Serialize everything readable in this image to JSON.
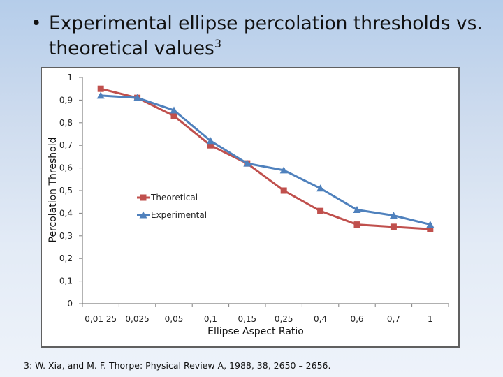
{
  "slide": {
    "bullet": "•",
    "title_text": "Experimental ellipse percolation thresholds vs. theoretical values",
    "title_superscript": "3",
    "reference": "3: W. Xia, and M. F. Thorpe: Physical Review A, 1988, 38, 2650 – 2656."
  },
  "chart_data": {
    "type": "line",
    "title": "",
    "xlabel": "Ellipse Aspect Ratio",
    "ylabel": "Percolation Threshold",
    "categories": [
      "0,0125",
      "0,025",
      "0,05",
      "0,1",
      "0,15",
      "0,25",
      "0,4",
      "0,6",
      "0,7",
      "1"
    ],
    "category_labels_shown": [
      "0,01 25",
      "0,025",
      "0,05",
      "0,1",
      "0,15",
      "0,25",
      "0,4",
      "0,6",
      "0,7",
      "1"
    ],
    "ylim": [
      0,
      1
    ],
    "ytick_values": [
      0,
      0.1,
      0.2,
      0.3,
      0.4,
      0.5,
      0.6,
      0.7,
      0.8,
      0.9,
      1
    ],
    "ytick_labels": [
      "0",
      "0,1",
      "0,2",
      "0,3",
      "0,4",
      "0,5",
      "0,6",
      "0,7",
      "0,8",
      "0,9",
      "1"
    ],
    "grid": false,
    "legend_position": "center-left",
    "series": [
      {
        "name": "Theoretical",
        "marker": "square",
        "color": "#c0504d",
        "values": [
          0.95,
          0.91,
          0.83,
          0.7,
          0.62,
          0.5,
          0.41,
          0.35,
          0.34,
          0.33
        ]
      },
      {
        "name": "Experimental",
        "marker": "triangle",
        "color": "#4f81bd",
        "values": [
          0.92,
          0.91,
          0.855,
          0.72,
          0.62,
          0.59,
          0.51,
          0.415,
          0.39,
          0.35
        ]
      }
    ]
  }
}
